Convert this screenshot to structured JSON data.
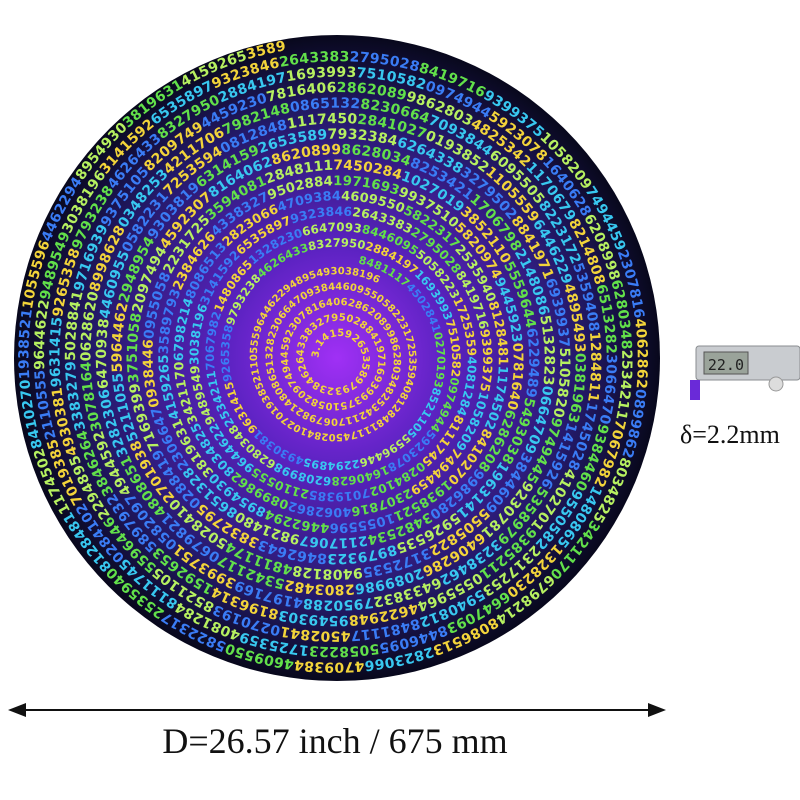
{
  "puzzle": {
    "digits": "3.14159265358979323846264338327950288419716939937510582097494459230781640628620899862803482534211706798214808651328230664709384460955058223172535940812848111745028410270193852110555964462294895493038196",
    "colors": {
      "center": "#9a2cf0",
      "mid": "#4a1fa8",
      "edge": "#0a0a28",
      "digit_palette": [
        "#f2d43a",
        "#62e04a",
        "#38c8f0",
        "#3a7cf5",
        "#b6f060"
      ]
    }
  },
  "caliper": {
    "display": "22.0"
  },
  "labels": {
    "thickness": "δ=2.2mm",
    "diameter": "D=26.57 inch / 675 mm"
  }
}
